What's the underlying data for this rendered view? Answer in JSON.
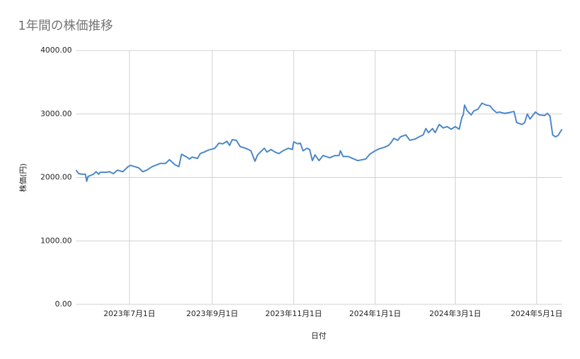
{
  "chart_data": {
    "type": "line",
    "title": "1年間の株価推移",
    "xlabel": "日付",
    "ylabel": "株価(円)",
    "color": "#4a86c8",
    "grid": true,
    "ylim": [
      0,
      4000
    ],
    "yticks": [
      {
        "value": 0,
        "label": "0.00"
      },
      {
        "value": 1000,
        "label": "1000.00"
      },
      {
        "value": 2000,
        "label": "2000.00"
      },
      {
        "value": 3000,
        "label": "3000.00"
      },
      {
        "value": 4000,
        "label": "4000.00"
      }
    ],
    "xlim": [
      "2023-05-22",
      "2024-05-20"
    ],
    "xticks": [
      {
        "value": "2023-07-01",
        "label": "2023年7月1日"
      },
      {
        "value": "2023-09-01",
        "label": "2023年9月1日"
      },
      {
        "value": "2023-11-01",
        "label": "2023年11月1日"
      },
      {
        "value": "2024-01-01",
        "label": "2024年1月1日"
      },
      {
        "value": "2024-03-01",
        "label": "2024年3月1日"
      },
      {
        "value": "2024-05-01",
        "label": "2024年5月1日"
      }
    ],
    "x": [
      "2023-05-22",
      "2023-05-24",
      "2023-05-27",
      "2023-05-29",
      "2023-05-30",
      "2023-05-31",
      "2023-06-04",
      "2023-06-06",
      "2023-06-08",
      "2023-06-09",
      "2023-06-13",
      "2023-06-16",
      "2023-06-19",
      "2023-06-22",
      "2023-06-26",
      "2023-06-30",
      "2023-07-02",
      "2023-07-05",
      "2023-07-08",
      "2023-07-11",
      "2023-07-14",
      "2023-07-18",
      "2023-07-24",
      "2023-07-28",
      "2023-07-31",
      "2023-08-04",
      "2023-08-07",
      "2023-08-09",
      "2023-08-13",
      "2023-08-15",
      "2023-08-17",
      "2023-08-21",
      "2023-08-23",
      "2023-08-26",
      "2023-08-29",
      "2023-09-03",
      "2023-09-06",
      "2023-09-09",
      "2023-09-12",
      "2023-09-14",
      "2023-09-16",
      "2023-09-19",
      "2023-09-22",
      "2023-09-26",
      "2023-09-30",
      "2023-10-03",
      "2023-10-05",
      "2023-10-08",
      "2023-10-10",
      "2023-10-12",
      "2023-10-15",
      "2023-10-18",
      "2023-10-21",
      "2023-10-24",
      "2023-10-28",
      "2023-10-31",
      "2023-11-01",
      "2023-11-04",
      "2023-11-06",
      "2023-11-08",
      "2023-11-11",
      "2023-11-13",
      "2023-11-15",
      "2023-11-17",
      "2023-11-20",
      "2023-11-23",
      "2023-11-28",
      "2023-12-02",
      "2023-12-05",
      "2023-12-06",
      "2023-12-08",
      "2023-12-12",
      "2023-12-15",
      "2023-12-19",
      "2023-12-25",
      "2023-12-28",
      "2024-01-01",
      "2024-01-04",
      "2024-01-08",
      "2024-01-11",
      "2024-01-13",
      "2024-01-15",
      "2024-01-18",
      "2024-01-20",
      "2024-01-24",
      "2024-01-27",
      "2024-01-31",
      "2024-02-03",
      "2024-02-06",
      "2024-02-08",
      "2024-02-10",
      "2024-02-13",
      "2024-02-15",
      "2024-02-18",
      "2024-02-21",
      "2024-02-24",
      "2024-02-27",
      "2024-03-01",
      "2024-03-04",
      "2024-03-06",
      "2024-03-07",
      "2024-03-08",
      "2024-03-10",
      "2024-03-13",
      "2024-03-15",
      "2024-03-18",
      "2024-03-21",
      "2024-03-24",
      "2024-03-27",
      "2024-03-29",
      "2024-04-01",
      "2024-04-03",
      "2024-04-07",
      "2024-04-10",
      "2024-04-14",
      "2024-04-16",
      "2024-04-20",
      "2024-04-22",
      "2024-04-24",
      "2024-04-26",
      "2024-04-30",
      "2024-05-03",
      "2024-05-07",
      "2024-05-09",
      "2024-05-11",
      "2024-05-13",
      "2024-05-15",
      "2024-05-17",
      "2024-05-20"
    ],
    "values": [
      2115,
      2060,
      2050,
      2050,
      1940,
      2016,
      2050,
      2090,
      2050,
      2080,
      2080,
      2090,
      2060,
      2115,
      2090,
      2170,
      2190,
      2170,
      2150,
      2090,
      2115,
      2170,
      2220,
      2220,
      2280,
      2200,
      2170,
      2365,
      2320,
      2290,
      2320,
      2300,
      2375,
      2400,
      2430,
      2460,
      2540,
      2530,
      2570,
      2505,
      2595,
      2585,
      2485,
      2460,
      2420,
      2255,
      2355,
      2420,
      2460,
      2400,
      2440,
      2400,
      2375,
      2420,
      2460,
      2440,
      2560,
      2530,
      2540,
      2420,
      2460,
      2440,
      2265,
      2355,
      2265,
      2345,
      2310,
      2345,
      2345,
      2420,
      2330,
      2330,
      2300,
      2265,
      2290,
      2365,
      2420,
      2450,
      2475,
      2505,
      2550,
      2615,
      2585,
      2640,
      2670,
      2585,
      2605,
      2640,
      2670,
      2770,
      2705,
      2770,
      2705,
      2835,
      2780,
      2800,
      2760,
      2800,
      2760,
      2945,
      2985,
      3140,
      3050,
      2985,
      3050,
      3075,
      3170,
      3140,
      3130,
      3075,
      3020,
      3030,
      3010,
      3020,
      3040,
      2865,
      2835,
      2865,
      3000,
      2920,
      3030,
      2985,
      2975,
      3010,
      2965,
      2670,
      2640,
      2660,
      2760
    ]
  }
}
